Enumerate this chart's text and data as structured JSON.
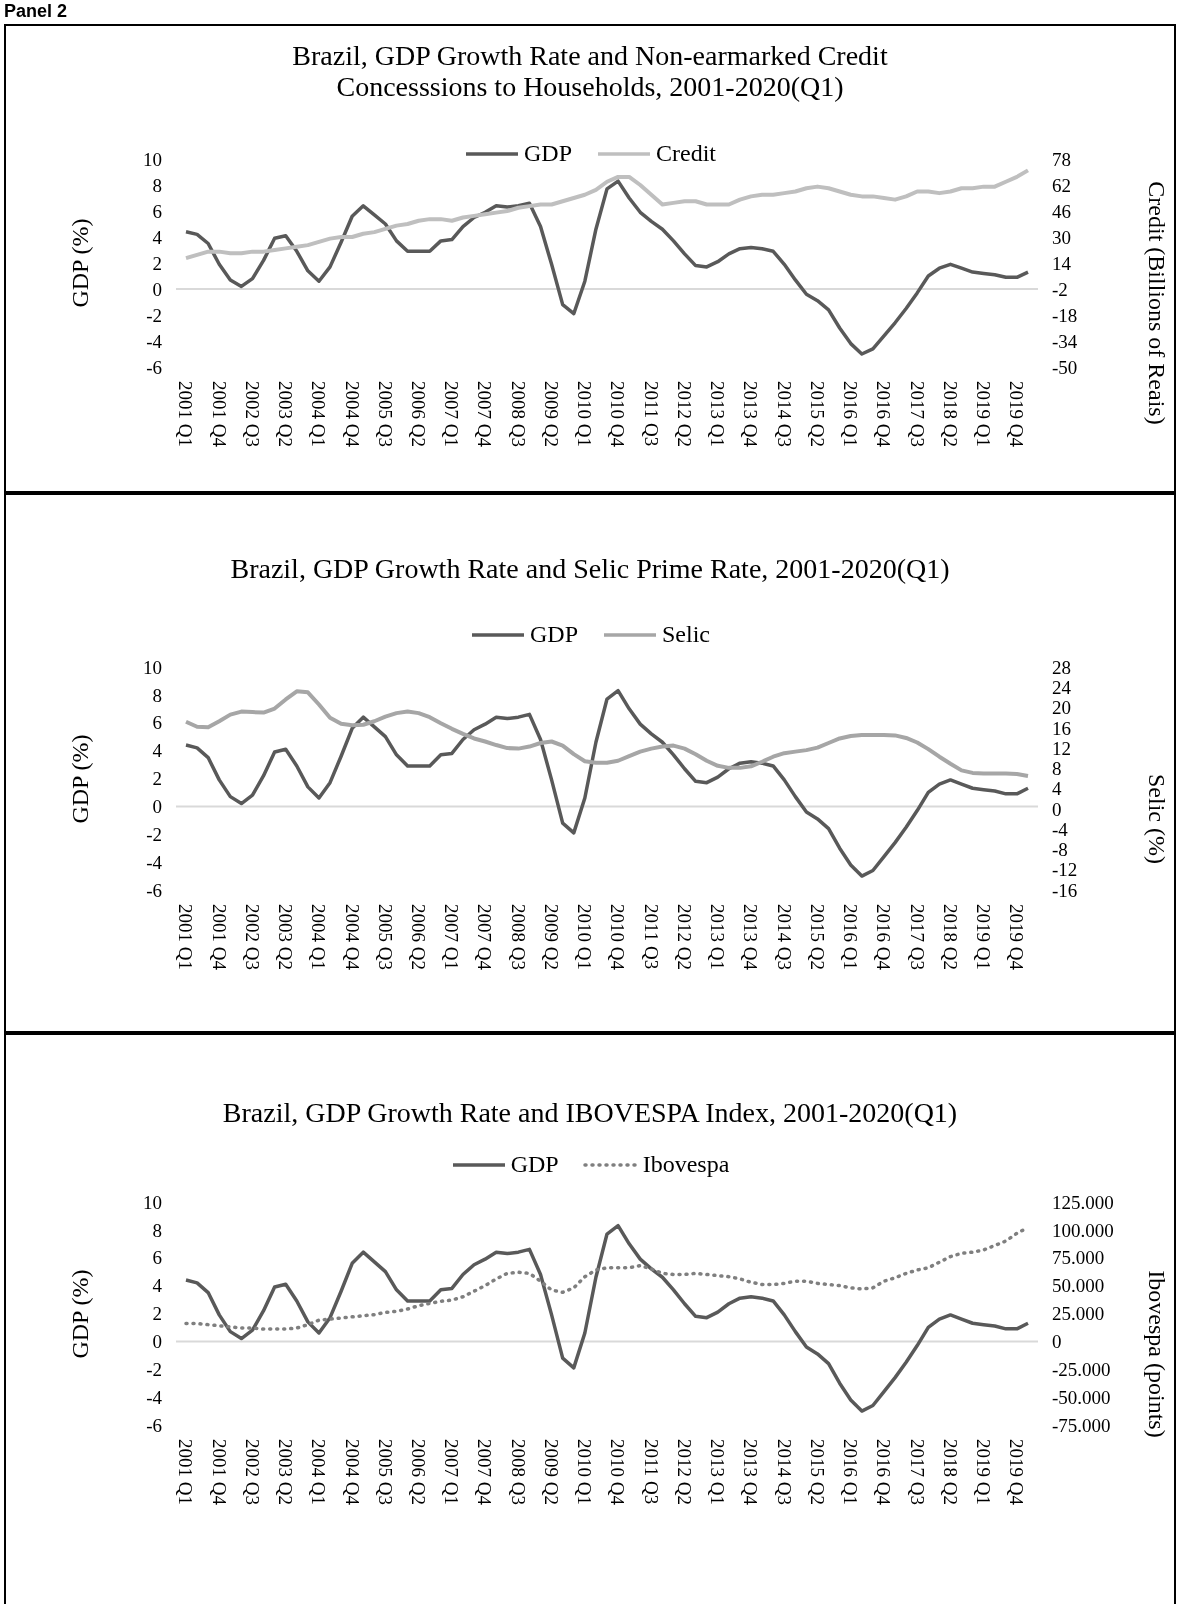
{
  "chart_data": [
    {
      "type": "line",
      "title": "Brazil, GDP Growth Rate and Non-earmarked Credit Concesssions to Households, 2001-2020(Q1)",
      "annotations": [
        "Panel 2"
      ],
      "categories": [
        "2001 Q1",
        null,
        null,
        "2001 Q4",
        null,
        null,
        "2002 Q3",
        null,
        null,
        "2003 Q2",
        null,
        null,
        "2004 Q1",
        null,
        null,
        "2004 Q4",
        null,
        null,
        "2005 Q3",
        null,
        null,
        "2006 Q2",
        null,
        null,
        "2007 Q1",
        null,
        null,
        "2007 Q4",
        null,
        null,
        "2008 Q3",
        null,
        null,
        "2009 Q2",
        null,
        null,
        "2010 Q1",
        null,
        null,
        "2010 Q4",
        null,
        null,
        "2011 Q3",
        null,
        null,
        "2012 Q2",
        null,
        null,
        "2013 Q1",
        null,
        null,
        "2013 Q4",
        null,
        null,
        "2014 Q3",
        null,
        null,
        "2015 Q2",
        null,
        null,
        "2016 Q1",
        null,
        null,
        "2016 Q4",
        null,
        null,
        "2017 Q3",
        null,
        null,
        "2018 Q2",
        null,
        null,
        "2019 Q1",
        null,
        null,
        "2019 Q4",
        null
      ],
      "series": [
        {
          "name": "GDP",
          "color": "#595959",
          "values": [
            4.4,
            4.2,
            3.5,
            1.9,
            0.7,
            0.2,
            0.8,
            2.2,
            3.9,
            4.1,
            2.9,
            1.4,
            0.6,
            1.7,
            3.6,
            5.6,
            6.4,
            5.7,
            5.0,
            3.7,
            2.9,
            2.9,
            2.9,
            3.7,
            3.8,
            4.8,
            5.5,
            5.9,
            6.4,
            6.3,
            6.4,
            6.6,
            4.8,
            1.9,
            -1.2,
            -1.9,
            0.6,
            4.6,
            7.7,
            8.3,
            7.0,
            5.9,
            5.2,
            4.6,
            3.7,
            2.7,
            1.8,
            1.7,
            2.1,
            2.7,
            3.1,
            3.2,
            3.1,
            2.9,
            1.9,
            0.7,
            -0.4,
            -0.9,
            -1.6,
            -3.0,
            -4.2,
            -5.0,
            -4.6,
            -3.6,
            -2.6,
            -1.5,
            -0.3,
            1.0,
            1.6,
            1.9,
            1.6,
            1.3,
            1.2,
            1.1,
            0.9,
            0.9,
            1.3
          ]
        },
        {
          "name": "Credit",
          "color": "#bfbfbf",
          "axis": "y2",
          "values": [
            17,
            19,
            21,
            21,
            20,
            20,
            21,
            21,
            22,
            23,
            24,
            25,
            27,
            29,
            30,
            30,
            32,
            33,
            35,
            37,
            38,
            40,
            41,
            41,
            40,
            42,
            43,
            44,
            45,
            46,
            48,
            49,
            50,
            50,
            52,
            54,
            56,
            59,
            64,
            67,
            67,
            62,
            56,
            50,
            51,
            52,
            52,
            50,
            50,
            50,
            53,
            55,
            56,
            56,
            57,
            58,
            60,
            61,
            60,
            58,
            56,
            55,
            55,
            54,
            53,
            55,
            58,
            58,
            57,
            58,
            60,
            60,
            61,
            61,
            64,
            67,
            71
          ]
        }
      ],
      "ylabel": "GDP (%)",
      "y2label": "Credit (Billions of Reais)",
      "ylim": [
        -6,
        10
      ],
      "yticks": [
        -6,
        -4,
        -2,
        0,
        2,
        4,
        6,
        8,
        10
      ],
      "y2lim": [
        -50,
        78
      ],
      "y2ticks": [
        -50,
        -34,
        -18,
        -2,
        14,
        30,
        46,
        62,
        78
      ],
      "ref_lines": [
        {
          "axis": "y",
          "value": 0,
          "color": "#d9d9d9"
        }
      ],
      "legend": "top",
      "grid": false
    },
    {
      "type": "line",
      "title": "Brazil, GDP Growth Rate and Selic Prime Rate, 2001-2020(Q1)",
      "categories": [
        "2001 Q1",
        null,
        null,
        "2001 Q4",
        null,
        null,
        "2002 Q3",
        null,
        null,
        "2003 Q2",
        null,
        null,
        "2004 Q1",
        null,
        null,
        "2004 Q4",
        null,
        null,
        "2005 Q3",
        null,
        null,
        "2006 Q2",
        null,
        null,
        "2007 Q1",
        null,
        null,
        "2007 Q4",
        null,
        null,
        "2008 Q3",
        null,
        null,
        "2009 Q2",
        null,
        null,
        "2010 Q1",
        null,
        null,
        "2010 Q4",
        null,
        null,
        "2011 Q3",
        null,
        null,
        "2012 Q2",
        null,
        null,
        "2013 Q1",
        null,
        null,
        "2013 Q4",
        null,
        null,
        "2014 Q3",
        null,
        null,
        "2015 Q2",
        null,
        null,
        "2016 Q1",
        null,
        null,
        "2016 Q4",
        null,
        null,
        "2017 Q3",
        null,
        null,
        "2018 Q2",
        null,
        null,
        "2019 Q1",
        null,
        null,
        "2019 Q4",
        null
      ],
      "series": [
        {
          "name": "GDP",
          "color": "#595959",
          "values": [
            4.4,
            4.2,
            3.5,
            1.9,
            0.7,
            0.2,
            0.8,
            2.2,
            3.9,
            4.1,
            2.9,
            1.4,
            0.6,
            1.7,
            3.6,
            5.6,
            6.4,
            5.7,
            5.0,
            3.7,
            2.9,
            2.9,
            2.9,
            3.7,
            3.8,
            4.8,
            5.5,
            5.9,
            6.4,
            6.3,
            6.4,
            6.6,
            4.8,
            1.9,
            -1.2,
            -1.9,
            0.6,
            4.6,
            7.7,
            8.3,
            7.0,
            5.9,
            5.2,
            4.6,
            3.7,
            2.7,
            1.8,
            1.7,
            2.1,
            2.7,
            3.1,
            3.2,
            3.1,
            2.9,
            1.9,
            0.7,
            -0.4,
            -0.9,
            -1.6,
            -3.0,
            -4.2,
            -5.0,
            -4.6,
            -3.6,
            -2.6,
            -1.5,
            -0.3,
            1.0,
            1.6,
            1.9,
            1.6,
            1.3,
            1.2,
            1.1,
            0.9,
            0.9,
            1.3
          ]
        },
        {
          "name": "Selic",
          "color": "#a6a6a6",
          "axis": "y2",
          "values": [
            17.2,
            16.2,
            16.1,
            17.3,
            18.6,
            19.2,
            19.1,
            19.0,
            19.8,
            21.6,
            23.2,
            23.0,
            20.6,
            18.0,
            16.8,
            16.5,
            16.6,
            17.3,
            18.2,
            18.9,
            19.2,
            18.9,
            18.1,
            16.9,
            15.8,
            14.8,
            13.9,
            13.3,
            12.6,
            12.0,
            11.9,
            12.3,
            13.0,
            13.3,
            12.5,
            10.8,
            9.4,
            9.1,
            9.1,
            9.5,
            10.4,
            11.3,
            11.9,
            12.3,
            12.5,
            11.9,
            10.8,
            9.5,
            8.5,
            8.1,
            8.1,
            8.4,
            9.3,
            10.3,
            11.0,
            11.3,
            11.6,
            12.1,
            13.0,
            13.9,
            14.4,
            14.6,
            14.6,
            14.6,
            14.5,
            14.0,
            13.1,
            11.8,
            10.3,
            8.9,
            7.6,
            7.1,
            7.0,
            7.0,
            7.0,
            6.9,
            6.5
          ]
        }
      ],
      "ylabel": "GDP (%)",
      "y2label": "Selic  (%)",
      "ylim": [
        -6,
        10
      ],
      "yticks": [
        -6,
        -4,
        -2,
        0,
        2,
        4,
        6,
        8,
        10
      ],
      "y2lim": [
        -16,
        28
      ],
      "y2ticks": [
        -16,
        -12,
        -8,
        -4,
        0,
        4,
        8,
        12,
        16,
        20,
        24,
        28
      ],
      "ref_lines": [
        {
          "axis": "y",
          "value": 0,
          "color": "#d9d9d9"
        }
      ],
      "legend": "top",
      "grid": false
    },
    {
      "type": "line",
      "title": "Brazil, GDP Growth Rate and IBOVESPA Index, 2001-2020(Q1)",
      "categories": [
        "2001 Q1",
        null,
        null,
        "2001 Q4",
        null,
        null,
        "2002 Q3",
        null,
        null,
        "2003 Q2",
        null,
        null,
        "2004 Q1",
        null,
        null,
        "2004 Q4",
        null,
        null,
        "2005 Q3",
        null,
        null,
        "2006 Q2",
        null,
        null,
        "2007 Q1",
        null,
        null,
        "2007 Q4",
        null,
        null,
        "2008 Q3",
        null,
        null,
        "2009 Q2",
        null,
        null,
        "2010 Q1",
        null,
        null,
        "2010 Q4",
        null,
        null,
        "2011 Q3",
        null,
        null,
        "2012 Q2",
        null,
        null,
        "2013 Q1",
        null,
        null,
        "2013 Q4",
        null,
        null,
        "2014 Q3",
        null,
        null,
        "2015 Q2",
        null,
        null,
        "2016 Q1",
        null,
        null,
        "2016 Q4",
        null,
        null,
        "2017 Q3",
        null,
        null,
        "2018 Q2",
        null,
        null,
        "2019 Q1",
        null,
        null,
        "2019 Q4",
        null
      ],
      "series": [
        {
          "name": "GDP",
          "color": "#595959",
          "values": [
            4.4,
            4.2,
            3.5,
            1.9,
            0.7,
            0.2,
            0.8,
            2.2,
            3.9,
            4.1,
            2.9,
            1.4,
            0.6,
            1.7,
            3.6,
            5.6,
            6.4,
            5.7,
            5.0,
            3.7,
            2.9,
            2.9,
            2.9,
            3.7,
            3.8,
            4.8,
            5.5,
            5.9,
            6.4,
            6.3,
            6.4,
            6.6,
            4.8,
            1.9,
            -1.2,
            -1.9,
            0.6,
            4.6,
            7.7,
            8.3,
            7.0,
            5.9,
            5.2,
            4.6,
            3.7,
            2.7,
            1.8,
            1.7,
            2.1,
            2.7,
            3.1,
            3.2,
            3.1,
            2.9,
            1.9,
            0.7,
            -0.4,
            -0.9,
            -1.6,
            -3.0,
            -4.2,
            -5.0,
            -4.6,
            -3.6,
            -2.6,
            -1.5,
            -0.3,
            1.0,
            1.6,
            1.9,
            1.6,
            1.3,
            1.2,
            1.1,
            0.9,
            0.9,
            1.3
          ]
        },
        {
          "name": "Ibovespa",
          "color": "#7f7f7f",
          "axis": "y2",
          "line_style": "dotted",
          "values": [
            16000,
            16000,
            15000,
            14000,
            13000,
            12000,
            12000,
            11000,
            11000,
            11000,
            12000,
            15000,
            19000,
            20000,
            21000,
            22000,
            23000,
            24000,
            26000,
            27000,
            29000,
            32000,
            34000,
            36000,
            37000,
            40000,
            45000,
            50000,
            56000,
            61000,
            62000,
            61000,
            54000,
            46000,
            44000,
            48000,
            58000,
            64000,
            66000,
            66000,
            66000,
            68000,
            65000,
            61000,
            60000,
            60000,
            61000,
            60000,
            59000,
            58000,
            56000,
            53000,
            51000,
            51000,
            52000,
            54000,
            54000,
            52000,
            51000,
            50000,
            48000,
            47000,
            48000,
            54000,
            57000,
            61000,
            64000,
            66000,
            71000,
            76000,
            79000,
            80000,
            82000,
            86000,
            90000,
            97000,
            102000
          ]
        }
      ],
      "ylabel": "GDP (%)",
      "y2label": "Ibovespa (points)",
      "ylim": [
        -6,
        10
      ],
      "yticks": [
        -6,
        -4,
        -2,
        0,
        2,
        4,
        6,
        8,
        10
      ],
      "y2lim": [
        -75000,
        125000
      ],
      "y2ticks": [
        {
          "value": -75000,
          "label": "-75.000"
        },
        {
          "value": -50000,
          "label": "-50.000"
        },
        {
          "value": -25000,
          "label": "-25.000"
        },
        {
          "value": 0,
          "label": "0"
        },
        {
          "value": 25000,
          "label": "25.000"
        },
        {
          "value": 50000,
          "label": "50.000"
        },
        {
          "value": 75000,
          "label": "75.000"
        },
        {
          "value": 100000,
          "label": "100.000"
        },
        {
          "value": 125000,
          "label": "125.000"
        }
      ],
      "ref_lines": [
        {
          "axis": "y",
          "value": 0,
          "color": "#d9d9d9"
        }
      ],
      "legend": "top",
      "grid": false
    }
  ]
}
